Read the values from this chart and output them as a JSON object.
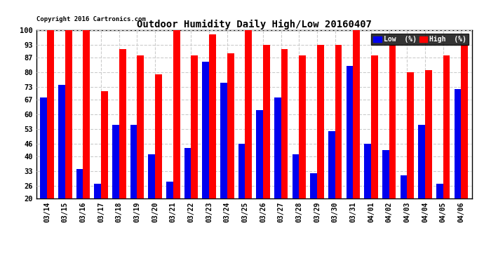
{
  "title": "Outdoor Humidity Daily High/Low 20160407",
  "copyright": "Copyright 2016 Cartronics.com",
  "categories": [
    "03/14",
    "03/15",
    "03/16",
    "03/17",
    "03/18",
    "03/19",
    "03/20",
    "03/21",
    "03/22",
    "03/23",
    "03/24",
    "03/25",
    "03/26",
    "03/27",
    "03/28",
    "03/29",
    "03/30",
    "03/31",
    "04/01",
    "04/02",
    "04/03",
    "04/04",
    "04/05",
    "04/06"
  ],
  "high_values": [
    100,
    100,
    100,
    71,
    91,
    88,
    79,
    100,
    88,
    98,
    89,
    100,
    93,
    91,
    88,
    93,
    93,
    100,
    88,
    93,
    80,
    81,
    88,
    93
  ],
  "low_values": [
    68,
    74,
    34,
    27,
    55,
    55,
    41,
    28,
    44,
    85,
    75,
    46,
    62,
    68,
    41,
    32,
    52,
    83,
    46,
    43,
    31,
    55,
    27,
    72
  ],
  "high_color": "#ff0000",
  "low_color": "#0000ee",
  "bg_color": "#ffffff",
  "ylim": [
    20,
    100
  ],
  "yticks": [
    20,
    26,
    33,
    40,
    46,
    53,
    60,
    67,
    73,
    80,
    87,
    93,
    100
  ],
  "grid_color": "#cccccc",
  "legend_low_label": "Low  (%)",
  "legend_high_label": "High  (%)",
  "bar_width": 0.38
}
